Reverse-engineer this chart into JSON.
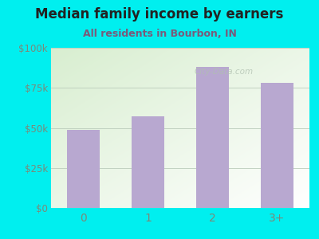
{
  "categories": [
    "0",
    "1",
    "2",
    "3+"
  ],
  "values": [
    49000,
    57000,
    88000,
    78000
  ],
  "bar_color": "#b8a8d0",
  "title": "Median family income by earners",
  "subtitle": "All residents in Bourbon, IN",
  "ylim": [
    0,
    100000
  ],
  "yticks": [
    0,
    25000,
    50000,
    75000,
    100000
  ],
  "ytick_labels": [
    "$0",
    "$25k",
    "$50k",
    "$75k",
    "$100k"
  ],
  "bg_color": "#00efef",
  "title_color": "#222222",
  "subtitle_color": "#7a5a7a",
  "tick_color": "#7a8a7a",
  "watermark": "City-Data.com"
}
